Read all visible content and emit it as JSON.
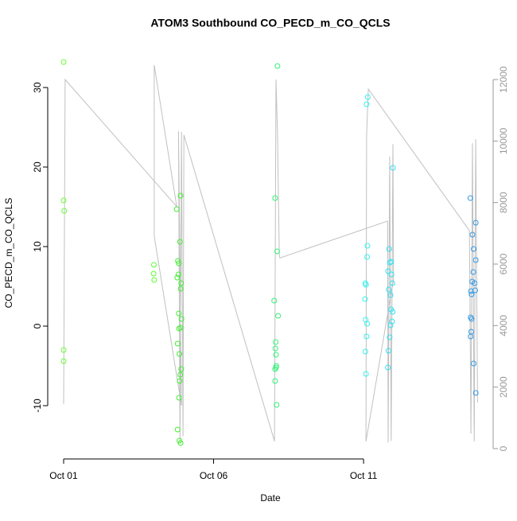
{
  "chart_data": {
    "type": "scatter",
    "title": "ATOM3 Southbound CO_PECD_m_CO_QCLS",
    "x_label": "Date",
    "y_label": "CO_PECD_m_CO_QCLS",
    "xlim": [
      0.47,
      15.32
    ],
    "xticks": [
      {
        "value": 1,
        "label": "Oct 01"
      },
      {
        "value": 6,
        "label": "Oct 06"
      },
      {
        "value": 11,
        "label": "Oct 11"
      }
    ],
    "ylim": [
      -16.7,
      35
    ],
    "yticks": [
      -10,
      0,
      10,
      20,
      30
    ],
    "y2lim": [
      -336,
      13035
    ],
    "y2ticks": [
      0,
      2000,
      4000,
      6000,
      8000,
      10000,
      12000
    ],
    "series": [
      {
        "color": "#66ff33",
        "x": [
          1.0,
          1.0,
          1.02,
          1.0,
          1.0
        ],
        "values": [
          33.2,
          15.8,
          14.5,
          -3.0,
          -4.4
        ]
      },
      {
        "color": "#5dff33",
        "x": [
          4.01,
          4.0,
          4.02
        ],
        "values": [
          7.7,
          6.6,
          5.8
        ]
      },
      {
        "color": "#44ee33",
        "x": [
          4.77,
          4.81,
          4.84,
          4.79,
          4.83,
          4.9,
          4.88,
          4.92,
          4.9,
          4.84,
          4.93,
          4.85,
          4.9,
          4.8,
          4.86,
          4.92,
          4.89,
          4.87,
          4.85,
          4.8,
          4.86,
          4.9
        ],
        "values": [
          14.7,
          8.2,
          7.9,
          6.1,
          6.5,
          16.4,
          10.6,
          5.4,
          4.7,
          1.6,
          0.9,
          -0.3,
          -0.2,
          -2.2,
          -3.5,
          -5.4,
          -6.1,
          -6.9,
          -9.0,
          -13.0,
          -14.4,
          -14.7
        ]
      },
      {
        "color": "#33f277",
        "x": [
          8.13,
          8.05,
          8.12,
          8.02,
          8.15,
          8.07,
          8.06,
          8.08,
          8.09,
          8.05,
          8.08,
          8.05,
          8.1
        ],
        "values": [
          32.7,
          16.1,
          9.4,
          3.2,
          1.3,
          -2.0,
          -2.8,
          -3.6,
          -5.0,
          -5.4,
          -5.2,
          -6.9,
          -9.9
        ]
      },
      {
        "color": "#33f2ee",
        "x": [
          11.14,
          11.1,
          11.13,
          11.12,
          11.06,
          11.08,
          11.05,
          11.07,
          11.12,
          11.1,
          11.06,
          11.08
        ],
        "values": [
          28.8,
          27.9,
          10.1,
          8.7,
          5.4,
          5.2,
          3.4,
          0.8,
          0.3,
          -1.3,
          -3.2,
          -6.0
        ]
      },
      {
        "color": "#33e0f2",
        "x": [
          11.98,
          11.85,
          11.92,
          11.88,
          11.82,
          11.93,
          11.96,
          11.84,
          11.9,
          11.92,
          11.97,
          11.95,
          11.9,
          11.87,
          11.83,
          11.81
        ],
        "values": [
          19.9,
          9.7,
          8.1,
          8.0,
          6.9,
          6.5,
          5.4,
          4.6,
          3.9,
          2.1,
          1.8,
          0.6,
          0.1,
          -1.4,
          -3.1,
          -5.2
        ]
      },
      {
        "color": "#3399e6",
        "x": [
          14.56,
          14.74,
          14.63,
          14.67,
          14.74,
          14.66,
          14.62,
          14.7,
          14.58,
          14.72,
          14.6,
          14.57,
          14.6,
          14.59,
          14.57,
          14.67,
          14.74
        ],
        "values": [
          16.1,
          13.0,
          11.5,
          9.7,
          8.3,
          6.8,
          5.6,
          5.4,
          4.4,
          4.5,
          4.0,
          1.1,
          0.9,
          -0.7,
          -1.3,
          -4.7,
          -8.4
        ]
      }
    ],
    "line": {
      "color": "#c0c0c0",
      "axis": "y2",
      "x": [
        1.0,
        1.05,
        4.77,
        4.02,
        4.02,
        4.93,
        4.83,
        4.88,
        4.93,
        4.98,
        5.01,
        8.03,
        8.08,
        8.13,
        8.19,
        8.21,
        11.8,
        11.82,
        11.87,
        11.92,
        11.98,
        12.0,
        11.08,
        11.1,
        11.16,
        14.53,
        14.58,
        14.63,
        14.69,
        14.74,
        14.8
      ],
      "values": [
        1450,
        12000,
        7870,
        12470,
        6910,
        1400,
        10320,
        200,
        10300,
        400,
        10200,
        240,
        12000,
        10200,
        6310,
        6200,
        7400,
        200,
        9500,
        250,
        9900,
        5500,
        230,
        10190,
        11690,
        7090,
        490,
        9930,
        230,
        10060,
        1500
      ]
    }
  }
}
